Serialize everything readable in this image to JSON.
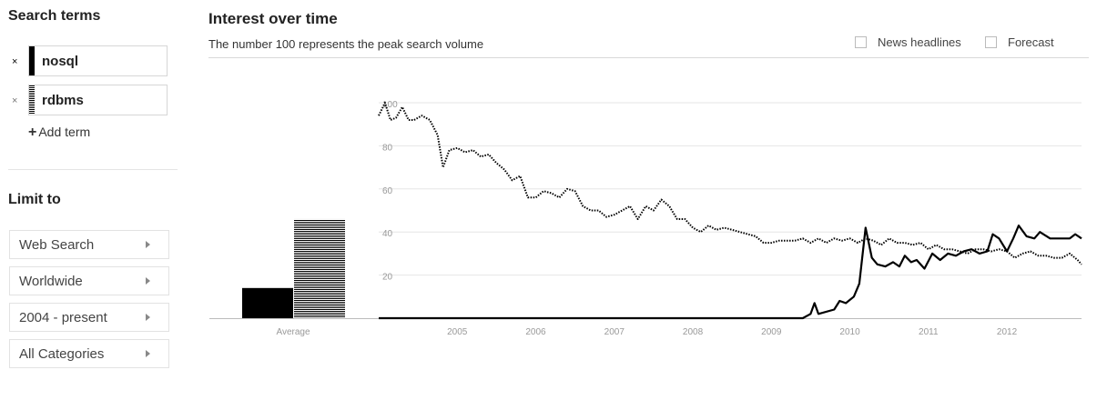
{
  "sidebar": {
    "search_terms_title": "Search terms",
    "terms": [
      {
        "label": "nosql",
        "remove": "×"
      },
      {
        "label": "rdbms",
        "remove": "×"
      }
    ],
    "add_term": "Add term",
    "limit_to_title": "Limit to",
    "filters": [
      "Web Search",
      "Worldwide",
      "2004 - present",
      "All Categories"
    ]
  },
  "main": {
    "title": "Interest over time",
    "subtitle": "The number 100 represents the peak search volume",
    "checkboxes": [
      "News headlines",
      "Forecast"
    ]
  },
  "chart_data": {
    "type": "line",
    "title": "Interest over time",
    "y_ticks": [
      20,
      40,
      60,
      80,
      100
    ],
    "ylim": [
      0,
      100
    ],
    "x_labels": [
      "2005",
      "2006",
      "2007",
      "2008",
      "2009",
      "2010",
      "2011",
      "2012"
    ],
    "x_range": [
      2004.0,
      2012.95
    ],
    "grid": true,
    "average": {
      "label": "Average",
      "values": {
        "nosql": 14,
        "rdbms": 46
      }
    },
    "series": [
      {
        "name": "nosql",
        "style": "solid",
        "points": [
          [
            2004.0,
            0
          ],
          [
            2009.4,
            0
          ],
          [
            2009.5,
            2
          ],
          [
            2009.55,
            7
          ],
          [
            2009.6,
            2
          ],
          [
            2009.8,
            4
          ],
          [
            2009.87,
            8
          ],
          [
            2009.95,
            7
          ],
          [
            2010.05,
            10
          ],
          [
            2010.12,
            16
          ],
          [
            2010.2,
            42
          ],
          [
            2010.28,
            28
          ],
          [
            2010.35,
            25
          ],
          [
            2010.45,
            24
          ],
          [
            2010.55,
            26
          ],
          [
            2010.63,
            24
          ],
          [
            2010.7,
            29
          ],
          [
            2010.78,
            26
          ],
          [
            2010.85,
            27
          ],
          [
            2010.95,
            23
          ],
          [
            2011.05,
            30
          ],
          [
            2011.15,
            27
          ],
          [
            2011.25,
            30
          ],
          [
            2011.35,
            29
          ],
          [
            2011.45,
            31
          ],
          [
            2011.55,
            32
          ],
          [
            2011.65,
            30
          ],
          [
            2011.75,
            31
          ],
          [
            2011.82,
            39
          ],
          [
            2011.9,
            37
          ],
          [
            2012.0,
            31
          ],
          [
            2012.08,
            37
          ],
          [
            2012.15,
            43
          ],
          [
            2012.25,
            38
          ],
          [
            2012.35,
            37
          ],
          [
            2012.42,
            40
          ],
          [
            2012.55,
            37
          ],
          [
            2012.7,
            37
          ],
          [
            2012.8,
            37
          ],
          [
            2012.87,
            39
          ],
          [
            2012.95,
            37
          ]
        ]
      },
      {
        "name": "rdbms",
        "style": "dotted",
        "points": [
          [
            2004.0,
            94
          ],
          [
            2004.08,
            100
          ],
          [
            2004.15,
            92
          ],
          [
            2004.22,
            93
          ],
          [
            2004.3,
            98
          ],
          [
            2004.38,
            92
          ],
          [
            2004.45,
            92
          ],
          [
            2004.55,
            94
          ],
          [
            2004.65,
            92
          ],
          [
            2004.75,
            85
          ],
          [
            2004.82,
            70
          ],
          [
            2004.9,
            78
          ],
          [
            2005.0,
            79
          ],
          [
            2005.1,
            77
          ],
          [
            2005.2,
            78
          ],
          [
            2005.3,
            75
          ],
          [
            2005.4,
            76
          ],
          [
            2005.5,
            72
          ],
          [
            2005.6,
            69
          ],
          [
            2005.7,
            64
          ],
          [
            2005.8,
            66
          ],
          [
            2005.9,
            56
          ],
          [
            2006.0,
            56
          ],
          [
            2006.1,
            59
          ],
          [
            2006.2,
            58
          ],
          [
            2006.3,
            56
          ],
          [
            2006.4,
            60
          ],
          [
            2006.5,
            59
          ],
          [
            2006.6,
            52
          ],
          [
            2006.7,
            50
          ],
          [
            2006.8,
            50
          ],
          [
            2006.9,
            47
          ],
          [
            2007.0,
            48
          ],
          [
            2007.1,
            50
          ],
          [
            2007.2,
            52
          ],
          [
            2007.3,
            46
          ],
          [
            2007.4,
            52
          ],
          [
            2007.5,
            50
          ],
          [
            2007.6,
            55
          ],
          [
            2007.7,
            52
          ],
          [
            2007.8,
            46
          ],
          [
            2007.9,
            46
          ],
          [
            2008.0,
            42
          ],
          [
            2008.1,
            40
          ],
          [
            2008.2,
            43
          ],
          [
            2008.3,
            41
          ],
          [
            2008.4,
            42
          ],
          [
            2008.5,
            41
          ],
          [
            2008.6,
            40
          ],
          [
            2008.7,
            39
          ],
          [
            2008.8,
            38
          ],
          [
            2008.9,
            35
          ],
          [
            2009.0,
            35
          ],
          [
            2009.1,
            36
          ],
          [
            2009.2,
            36
          ],
          [
            2009.3,
            36
          ],
          [
            2009.4,
            37
          ],
          [
            2009.5,
            35
          ],
          [
            2009.6,
            37
          ],
          [
            2009.7,
            35
          ],
          [
            2009.8,
            37
          ],
          [
            2009.9,
            36
          ],
          [
            2010.0,
            37
          ],
          [
            2010.1,
            35
          ],
          [
            2010.2,
            37
          ],
          [
            2010.3,
            36
          ],
          [
            2010.4,
            34
          ],
          [
            2010.5,
            37
          ],
          [
            2010.6,
            35
          ],
          [
            2010.7,
            35
          ],
          [
            2010.8,
            34
          ],
          [
            2010.9,
            35
          ],
          [
            2011.0,
            32
          ],
          [
            2011.1,
            34
          ],
          [
            2011.2,
            32
          ],
          [
            2011.3,
            32
          ],
          [
            2011.4,
            31
          ],
          [
            2011.5,
            30
          ],
          [
            2011.6,
            32
          ],
          [
            2011.7,
            32
          ],
          [
            2011.8,
            31
          ],
          [
            2011.9,
            32
          ],
          [
            2012.0,
            31
          ],
          [
            2012.1,
            28
          ],
          [
            2012.2,
            30
          ],
          [
            2012.3,
            31
          ],
          [
            2012.4,
            29
          ],
          [
            2012.5,
            29
          ],
          [
            2012.6,
            28
          ],
          [
            2012.7,
            28
          ],
          [
            2012.8,
            30
          ],
          [
            2012.9,
            27
          ],
          [
            2012.95,
            25
          ]
        ]
      }
    ]
  }
}
